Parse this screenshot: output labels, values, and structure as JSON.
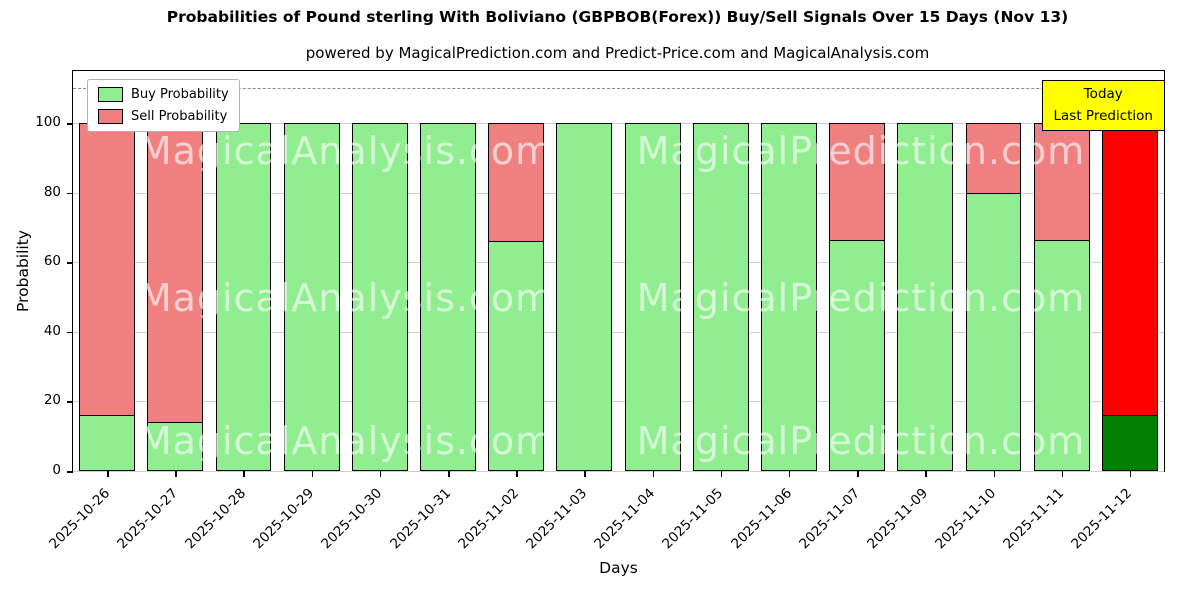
{
  "title": "Probabilities of Pound sterling With Boliviano (GBPBOB(Forex)) Buy/Sell Signals Over 15 Days (Nov 13)",
  "subtitle": "powered by MagicalPrediction.com and Predict-Price.com and MagicalAnalysis.com",
  "annotation": {
    "line1": "Today",
    "line2": "Last Prediction"
  },
  "watermark": {
    "left_text": "MagicalAnalysis.com",
    "right_text": "MagicalPrediction.com"
  },
  "colors": {
    "buy": "#90ee90",
    "sell": "#f08080",
    "today_buy": "#008000",
    "today_sell": "#ff0000",
    "annotation_bg": "#ffff00",
    "gridline": "#cfcfcf"
  },
  "chart_data": {
    "type": "bar",
    "stacked": true,
    "title": "Probabilities of Pound sterling With Boliviano (GBPBOB(Forex)) Buy/Sell Signals Over 15 Days (Nov 13)",
    "xlabel": "Days",
    "ylabel": "Probability",
    "ylim": [
      0,
      115
    ],
    "yticks": [
      0,
      20,
      40,
      60,
      80,
      100
    ],
    "dashed_line_y": 110,
    "grid": true,
    "legend_position": "upper left",
    "categories": [
      "2025-10-26",
      "2025-10-27",
      "2025-10-28",
      "2025-10-29",
      "2025-10-30",
      "2025-10-31",
      "2025-11-02",
      "2025-11-03",
      "2025-11-04",
      "2025-11-05",
      "2025-11-06",
      "2025-11-07",
      "2025-11-09",
      "2025-11-10",
      "2025-11-11",
      "2025-11-12"
    ],
    "series": [
      {
        "name": "Buy Probability",
        "values": [
          16,
          14,
          100,
          100,
          100,
          100,
          66,
          100,
          100,
          100,
          100,
          66.5,
          100,
          80,
          66.5,
          16
        ]
      },
      {
        "name": "Sell Probability",
        "values": [
          84,
          86,
          0,
          0,
          0,
          0,
          34,
          0,
          0,
          0,
          0,
          33.5,
          0,
          20,
          33.5,
          84
        ]
      }
    ],
    "today_index": 15
  }
}
